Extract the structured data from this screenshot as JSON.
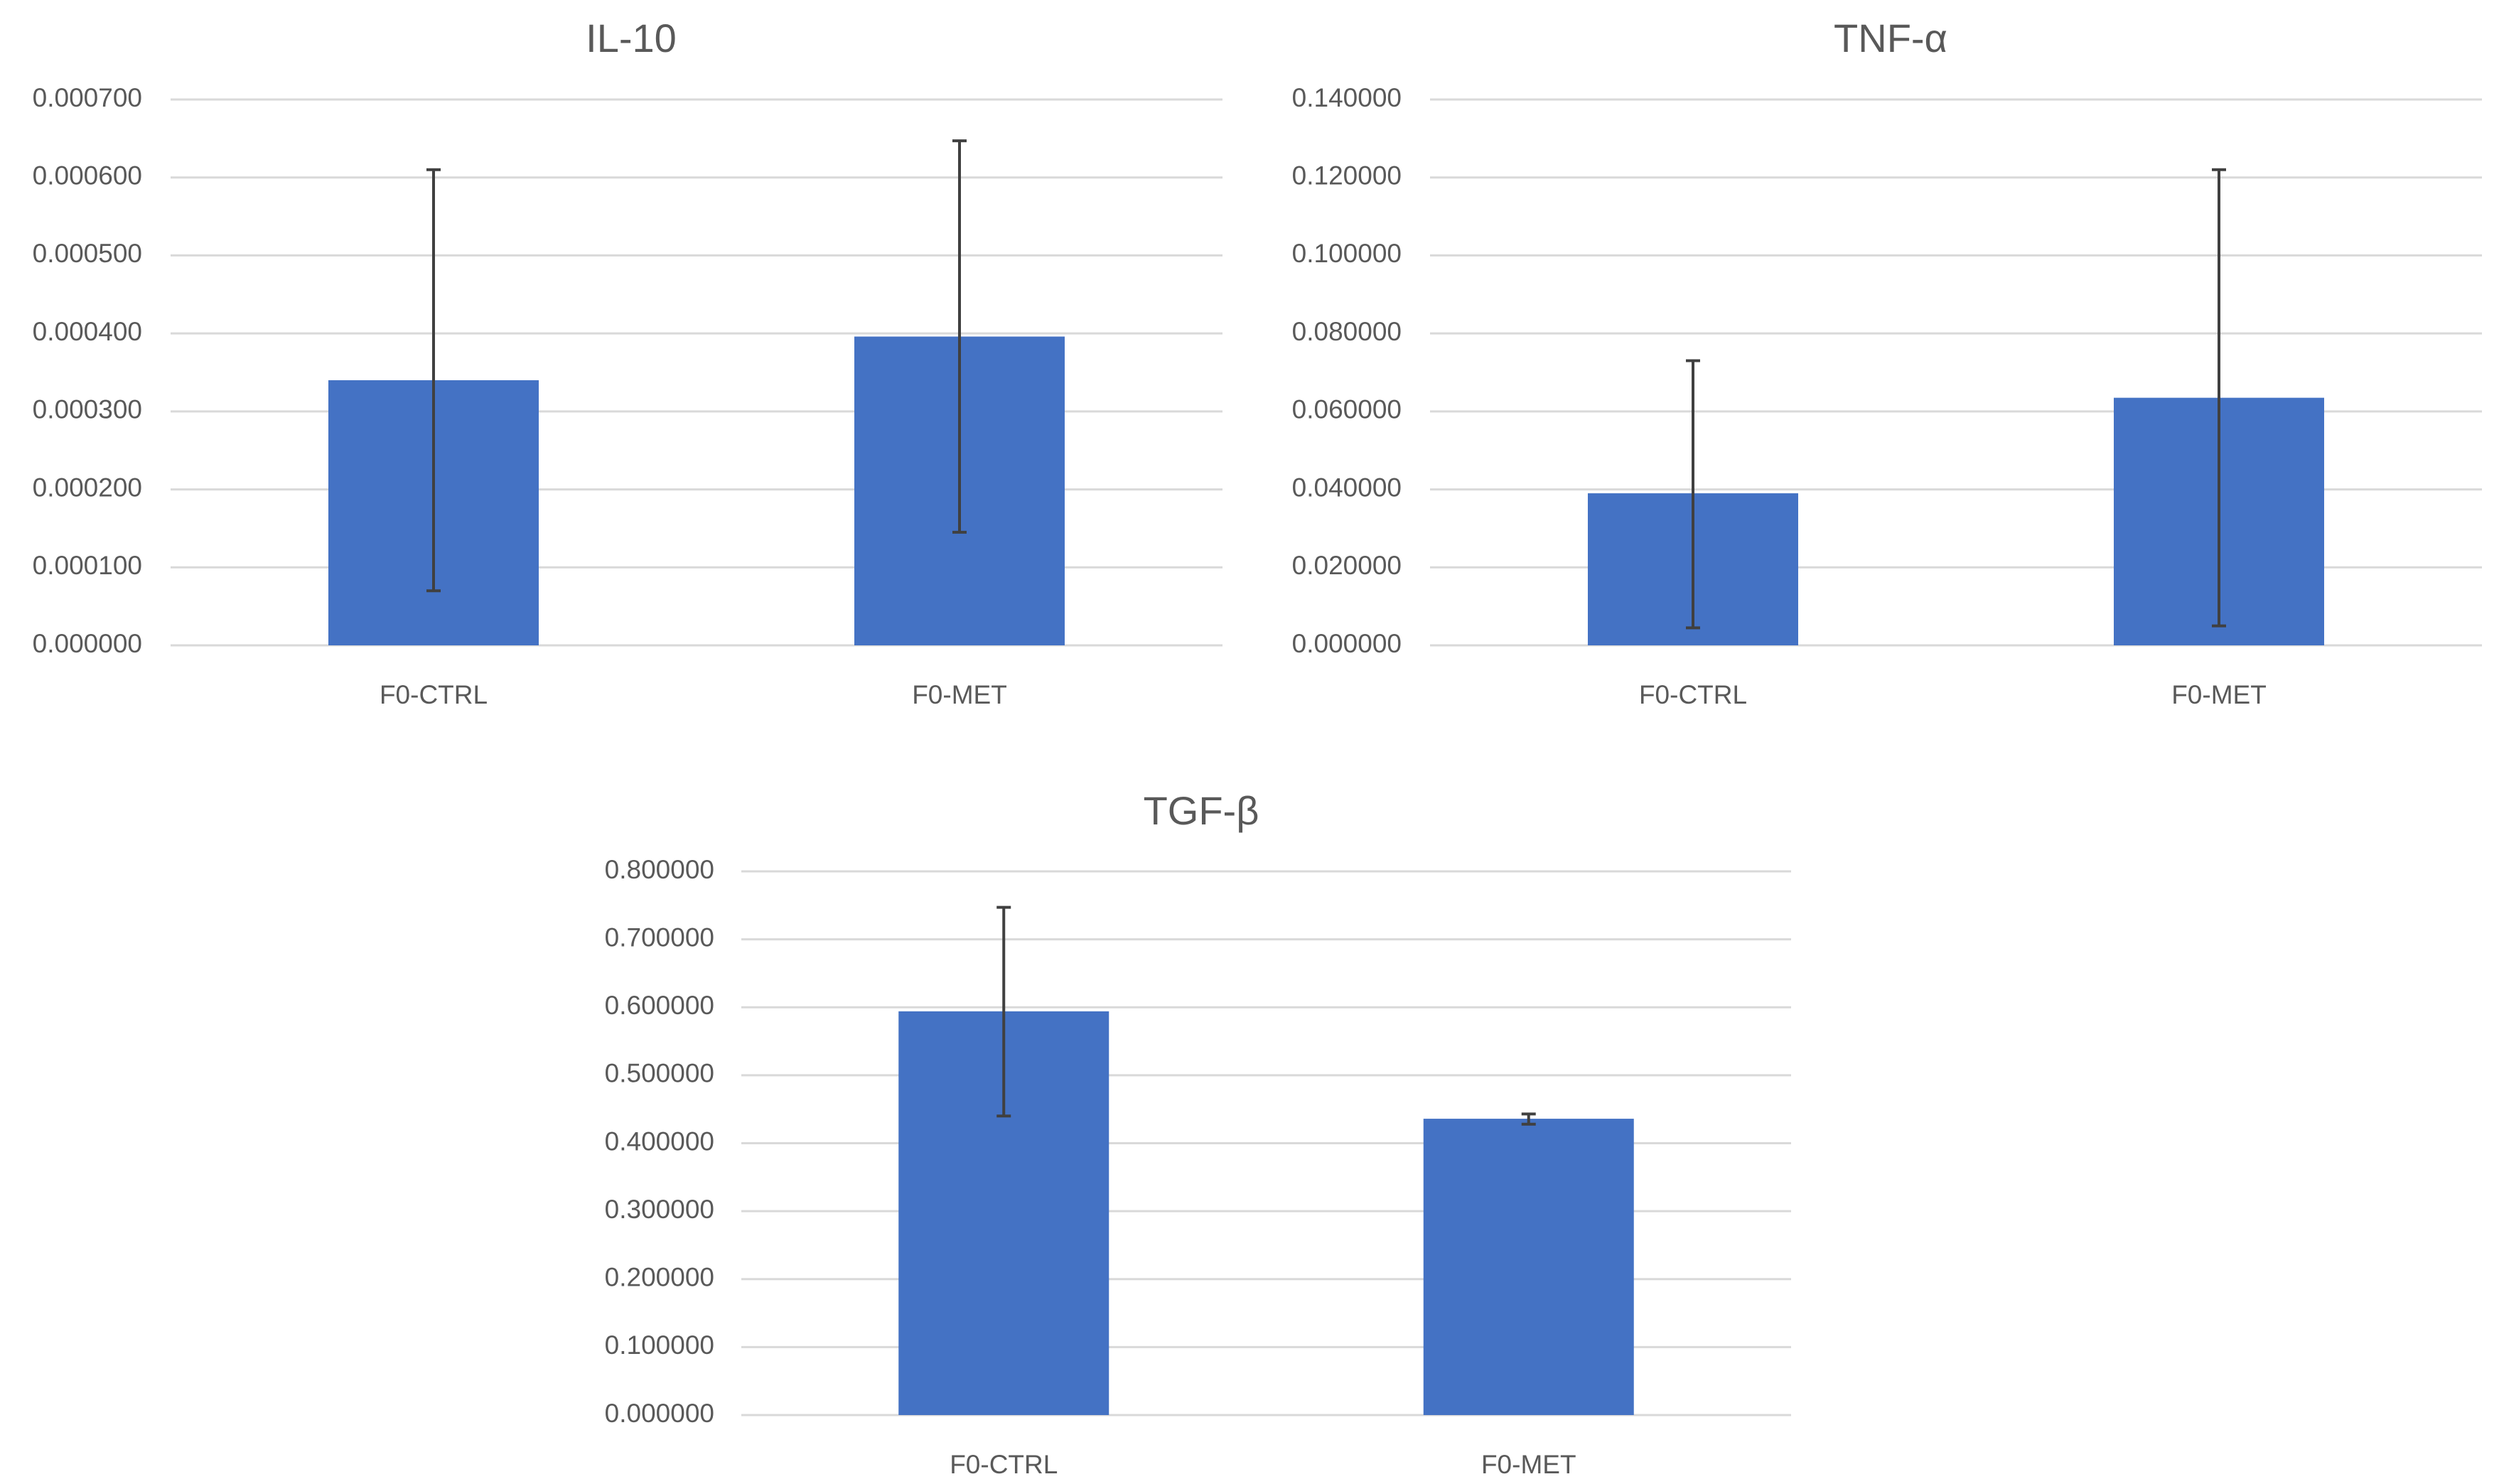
{
  "chart_data": [
    {
      "type": "bar",
      "title": "IL-10",
      "categories": [
        "F0-CTRL",
        "F0-MET"
      ],
      "values": [
        0.00034,
        0.000396
      ],
      "error_low": [
        7e-05,
        0.000145
      ],
      "error_high": [
        0.00061,
        0.000647
      ],
      "ylim": [
        0,
        0.0007
      ],
      "yticks": [
        "0.000000",
        "0.000100",
        "0.000200",
        "0.000300",
        "0.000400",
        "0.000500",
        "0.000600",
        "0.000700"
      ],
      "ytick_values": [
        0,
        0.0001,
        0.0002,
        0.0003,
        0.0004,
        0.0005,
        0.0006,
        0.0007
      ],
      "bar_color": "#4472C4",
      "grid": true
    },
    {
      "type": "bar",
      "title": "TNF-α",
      "categories": [
        "F0-CTRL",
        "F0-MET"
      ],
      "values": [
        0.039,
        0.0635
      ],
      "error_low": [
        0.0045,
        0.005
      ],
      "error_high": [
        0.073,
        0.122
      ],
      "ylim": [
        0,
        0.14
      ],
      "yticks": [
        "0.000000",
        "0.020000",
        "0.040000",
        "0.060000",
        "0.080000",
        "0.100000",
        "0.120000",
        "0.140000"
      ],
      "ytick_values": [
        0,
        0.02,
        0.04,
        0.06,
        0.08,
        0.1,
        0.12,
        0.14
      ],
      "bar_color": "#4472C4",
      "grid": true
    },
    {
      "type": "bar",
      "title": "TGF-β",
      "categories": [
        "F0-CTRL",
        "F0-MET"
      ],
      "values": [
        0.594,
        0.436
      ],
      "error_low": [
        0.44,
        0.428
      ],
      "error_high": [
        0.747,
        0.443
      ],
      "ylim": [
        0,
        0.8
      ],
      "yticks": [
        "0.000000",
        "0.100000",
        "0.200000",
        "0.300000",
        "0.400000",
        "0.500000",
        "0.600000",
        "0.700000",
        "0.800000"
      ],
      "ytick_values": [
        0,
        0.1,
        0.2,
        0.3,
        0.4,
        0.5,
        0.6,
        0.7,
        0.8
      ],
      "bar_color": "#4472C4",
      "grid": true
    }
  ]
}
